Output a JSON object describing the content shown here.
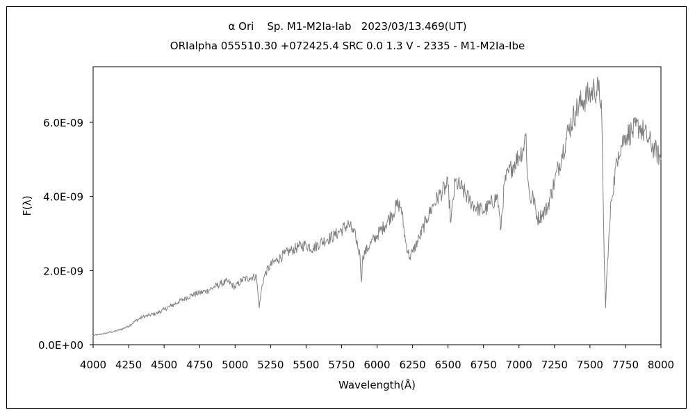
{
  "chart_data": {
    "type": "line",
    "title": "α Ori    Sp. M1-M2Ia-Iab   2023/03/13.469(UT)",
    "subtitle": "ORIalpha 055510.30 +072425.4 SRC 0.0 1.3 V - 2335 - M1-M2Ia-Ibe",
    "xlabel": "Wavelength(Å)",
    "ylabel": "F(λ)",
    "xlim": [
      4000,
      8000
    ],
    "ylim": [
      0,
      7.5e-09
    ],
    "grid": false,
    "line_color": "#7f7f7f",
    "x_ticks": [
      {
        "value": 4000,
        "label": "4000"
      },
      {
        "value": 4250,
        "label": "4250"
      },
      {
        "value": 4500,
        "label": "4500"
      },
      {
        "value": 4750,
        "label": "4750"
      },
      {
        "value": 5000,
        "label": "5000"
      },
      {
        "value": 5250,
        "label": "5250"
      },
      {
        "value": 5500,
        "label": "5500"
      },
      {
        "value": 5750,
        "label": "5750"
      },
      {
        "value": 6000,
        "label": "6000"
      },
      {
        "value": 6250,
        "label": "6250"
      },
      {
        "value": 6500,
        "label": "6500"
      },
      {
        "value": 6750,
        "label": "6750"
      },
      {
        "value": 7000,
        "label": "7000"
      },
      {
        "value": 7250,
        "label": "7250"
      },
      {
        "value": 7500,
        "label": "7500"
      },
      {
        "value": 7750,
        "label": "7750"
      },
      {
        "value": 8000,
        "label": "8000"
      }
    ],
    "y_ticks": [
      {
        "value": 0,
        "label": "0.0E+00"
      },
      {
        "value": 2e-09,
        "label": "2.0E-09"
      },
      {
        "value": 4e-09,
        "label": "4.0E-09"
      },
      {
        "value": 6e-09,
        "label": "6.0E-09"
      }
    ],
    "series": [
      {
        "x": [
          4000,
          4050,
          4100,
          4150,
          4200,
          4250,
          4300,
          4350,
          4400,
          4450,
          4500,
          4550,
          4600,
          4650,
          4700,
          4750,
          4800,
          4850,
          4900,
          4950,
          5000,
          5050,
          5100,
          5150,
          5170,
          5190,
          5210,
          5250,
          5300,
          5350,
          5400,
          5450,
          5500,
          5550,
          5600,
          5650,
          5700,
          5750,
          5800,
          5850,
          5880,
          5890,
          5900,
          5950,
          6000,
          6050,
          6100,
          6150,
          6170,
          6200,
          6230,
          6250,
          6300,
          6350,
          6400,
          6450,
          6500,
          6520,
          6550,
          6600,
          6650,
          6700,
          6750,
          6800,
          6850,
          6870,
          6900,
          6950,
          7000,
          7030,
          7050,
          7060,
          7080,
          7100,
          7130,
          7160,
          7200,
          7250,
          7300,
          7350,
          7400,
          7450,
          7500,
          7530,
          7560,
          7580,
          7590,
          7600,
          7610,
          7620,
          7650,
          7700,
          7750,
          7800,
          7850,
          7900,
          7950,
          8000
        ],
        "y": [
          2.5e-10,
          2.8e-10,
          3.2e-10,
          3.6e-10,
          4.2e-10,
          5e-10,
          6.5e-10,
          7.5e-10,
          8e-10,
          8.5e-10,
          9.5e-10,
          1.05e-09,
          1.15e-09,
          1.25e-09,
          1.35e-09,
          1.4e-09,
          1.45e-09,
          1.55e-09,
          1.65e-09,
          1.7e-09,
          1.55e-09,
          1.75e-09,
          1.8e-09,
          1.85e-09,
          1e-09,
          1.6e-09,
          1.9e-09,
          2.15e-09,
          2.3e-09,
          2.45e-09,
          2.55e-09,
          2.65e-09,
          2.7e-09,
          2.6e-09,
          2.75e-09,
          2.85e-09,
          2.95e-09,
          3.1e-09,
          3.25e-09,
          2.9e-09,
          2.4e-09,
          1.7e-09,
          2.4e-09,
          2.7e-09,
          2.95e-09,
          3.2e-09,
          3.5e-09,
          3.8e-09,
          3.7e-09,
          2.8e-09,
          2.35e-09,
          2.5e-09,
          2.9e-09,
          3.4e-09,
          3.8e-09,
          4.1e-09,
          4.3e-09,
          3.3e-09,
          4.4e-09,
          4.2e-09,
          3.9e-09,
          3.7e-09,
          3.6e-09,
          3.8e-09,
          4e-09,
          3.1e-09,
          4.4e-09,
          4.8e-09,
          5.1e-09,
          5.3e-09,
          5.7e-09,
          4.5e-09,
          3.9e-09,
          4e-09,
          3.4e-09,
          3.5e-09,
          3.7e-09,
          4.4e-09,
          5.1e-09,
          5.8e-09,
          6.3e-09,
          6.6e-09,
          6.75e-09,
          6.9e-09,
          6.85e-09,
          6.6e-09,
          4.5e-09,
          2.4e-09,
          1e-09,
          2e-09,
          3.9e-09,
          5.2e-09,
          5.65e-09,
          5.75e-09,
          5.9e-09,
          5.6e-09,
          5.3e-09,
          5e-09
        ]
      }
    ]
  }
}
